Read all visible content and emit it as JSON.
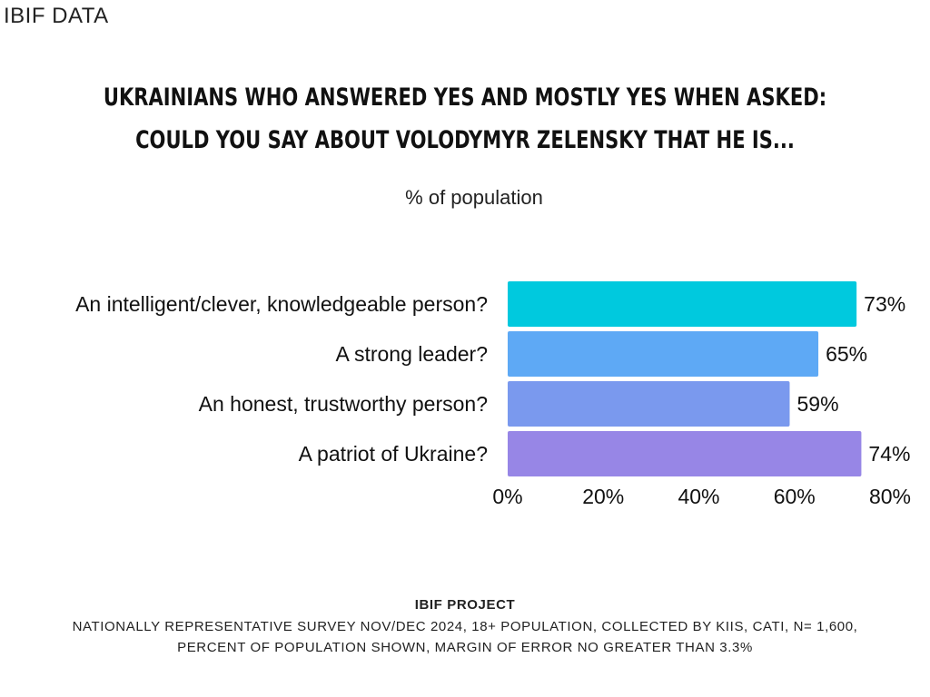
{
  "brand": "IBIF DATA",
  "title_line1": "UKRAINIANS WHO ANSWERED YES AND MOSTLY YES WHEN ASKED:",
  "title_line2": "COULD YOU SAY ABOUT VOLODYMYR ZELENSKY THAT HE IS...",
  "subtitle": "% of population",
  "footer": {
    "heading": "IBIF PROJECT",
    "line1": "NATIONALLY REPRESENTATIVE SURVEY NOV/DEC 2024, 18+ POPULATION, COLLECTED BY KIIS, CATI, N= 1,600,",
    "line2": "PERCENT OF POPULATION SHOWN, MARGIN OF ERROR NO GREATER THAN 3.3%"
  },
  "chart_data": {
    "type": "bar",
    "orientation": "horizontal",
    "categories": [
      "An intelligent/clever, knowledgeable person?",
      "A strong leader?",
      "An honest, trustworthy person?",
      "A patriot of Ukraine?"
    ],
    "values": [
      73,
      65,
      59,
      74
    ],
    "data_labels": [
      "73%",
      "65%",
      "59%",
      "74%"
    ],
    "xlim": [
      0,
      80
    ],
    "x_ticks": [
      0,
      20,
      40,
      60,
      80
    ],
    "x_tick_labels": [
      "0%",
      "20%",
      "40%",
      "60%",
      "80%"
    ],
    "grid": false,
    "colors": [
      "#00c9de",
      "#5ea9f5",
      "#7a99ee",
      "#9786e6"
    ]
  }
}
